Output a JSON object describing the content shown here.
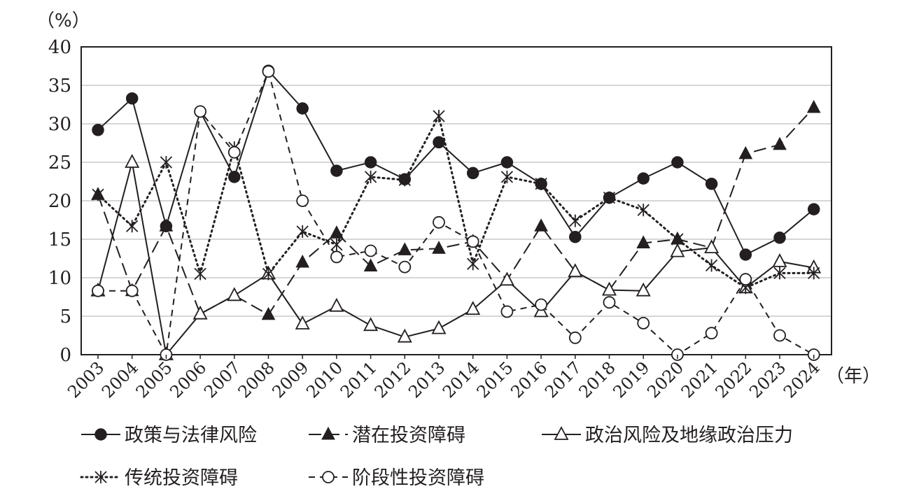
{
  "chart_data": {
    "type": "line",
    "y_unit": "（%）",
    "x_unit": "（年）",
    "ylim": [
      0,
      40
    ],
    "yticks": [
      0,
      5,
      10,
      15,
      20,
      25,
      30,
      35,
      40
    ],
    "grid": "horizontal",
    "legend_position": "bottom",
    "categories": [
      "2003",
      "2004",
      "2005",
      "2006",
      "2007",
      "2008",
      "2009",
      "2010",
      "2011",
      "2012",
      "2013",
      "2014",
      "2015",
      "2016",
      "2017",
      "2018",
      "2019",
      "2020",
      "2021",
      "2022",
      "2023",
      "2024"
    ],
    "series": [
      {
        "name": "政策与法律风险",
        "line_style": "solid",
        "marker": "filled-circle",
        "color": "#231f20",
        "values": [
          29.2,
          33.3,
          16.7,
          31.6,
          23.1,
          36.9,
          32.0,
          23.9,
          25.0,
          22.8,
          27.6,
          23.6,
          25.0,
          22.2,
          15.3,
          20.4,
          22.9,
          25.0,
          22.2,
          13.0,
          15.2,
          18.9
        ]
      },
      {
        "name": "潜在投资障碍",
        "line_style": "long-dash",
        "marker": "filled-triangle",
        "color": "#231f20",
        "values": [
          20.8,
          8.3,
          16.7,
          5.3,
          7.7,
          5.2,
          12.0,
          15.8,
          11.5,
          13.6,
          13.8,
          14.7,
          9.7,
          16.7,
          10.8,
          8.4,
          14.5,
          15.0,
          13.9,
          26.1,
          27.3,
          32.1
        ]
      },
      {
        "name": "政治风险及地缘政治压力",
        "line_style": "solid",
        "marker": "hollow-triangle",
        "color": "#231f20",
        "values": [
          8.3,
          25.0,
          0,
          5.3,
          7.7,
          10.5,
          4.0,
          6.3,
          3.8,
          2.3,
          3.4,
          5.9,
          9.7,
          5.6,
          10.8,
          8.4,
          8.3,
          13.4,
          13.9,
          8.7,
          12.1,
          11.3
        ]
      },
      {
        "name": "传统投资障碍",
        "line_style": "dotted",
        "marker": "asterisk",
        "color": "#231f20",
        "values": [
          20.8,
          16.7,
          25.0,
          10.5,
          26.9,
          10.5,
          16.0,
          14.3,
          23.1,
          22.7,
          31.0,
          11.8,
          23.1,
          22.2,
          17.4,
          20.4,
          18.8,
          15.0,
          11.6,
          8.7,
          10.6,
          10.6
        ]
      },
      {
        "name": "阶段性投资障碍",
        "line_style": "short-dash",
        "marker": "hollow-circle",
        "color": "#231f20",
        "values": [
          8.3,
          8.3,
          0,
          31.6,
          26.3,
          36.8,
          20.0,
          12.7,
          13.5,
          11.4,
          17.2,
          14.7,
          5.6,
          6.5,
          2.2,
          6.8,
          4.1,
          0,
          2.8,
          9.8,
          2.5,
          0
        ]
      }
    ]
  }
}
